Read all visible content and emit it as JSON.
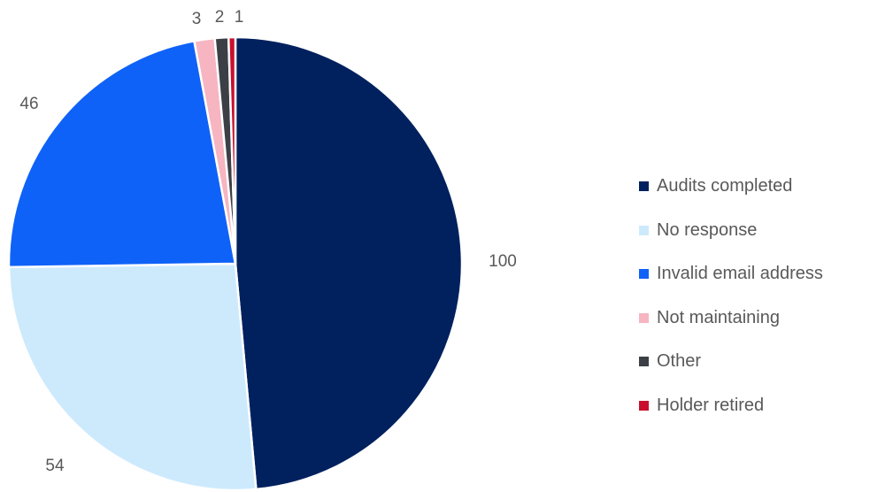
{
  "chart_data": {
    "type": "pie",
    "title": "",
    "categories": [
      "Audits completed",
      "No response",
      "Invalid email address",
      "Not maintaining",
      "Other",
      "Holder retired"
    ],
    "values": [
      100,
      54,
      46,
      3,
      2,
      1
    ],
    "colors": [
      "#00215e",
      "#cdeafd",
      "#0f62f7",
      "#f6b5c1",
      "#3c4046",
      "#c8102e"
    ],
    "start_angle_deg": 0,
    "direction": "clockwise",
    "data_labels": [
      "100",
      "54",
      "46",
      "3",
      "2",
      "1"
    ],
    "legend": {
      "placement": "right",
      "entries": [
        "Audits completed",
        "No response",
        "Invalid email address",
        "Not maintaining",
        "Other",
        "Holder retired"
      ]
    }
  }
}
